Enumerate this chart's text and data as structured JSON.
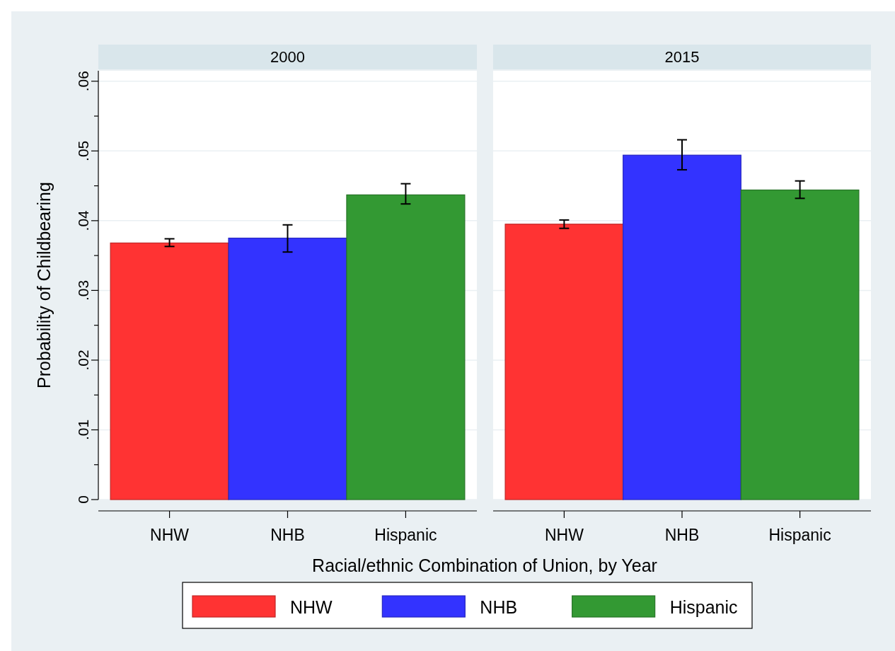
{
  "chart_data": [
    {
      "type": "bar",
      "title": "2000",
      "ylabel": "Probability of Childbearing",
      "xlabel": "Racial/ethnic Combination of Union, by Year",
      "legend": "bottom",
      "grid": "y",
      "categories": [
        "NHW",
        "NHB",
        "Hispanic"
      ],
      "series": [
        {
          "name": "NHW",
          "color": "#ff3333",
          "values": [
            0.0368,
            null,
            null
          ],
          "errors": [
            [
              0.0363,
              0.0374
            ],
            null,
            null
          ]
        },
        {
          "name": "NHB",
          "color": "#3333ff",
          "values": [
            null,
            0.0375,
            null
          ],
          "errors": [
            null,
            [
              0.0355,
              0.0394
            ],
            null
          ]
        },
        {
          "name": "Hispanic",
          "color": "#339933",
          "values": [
            null,
            null,
            0.0437
          ],
          "errors": [
            null,
            null,
            [
              0.0424,
              0.0453
            ]
          ]
        }
      ],
      "ylim": [
        0,
        0.0615
      ],
      "yticks": [
        {
          "value": 0,
          "label": "0"
        },
        {
          "value": 0.005,
          "label": null
        },
        {
          "value": 0.01,
          "label": ".01"
        },
        {
          "value": 0.015,
          "label": null
        },
        {
          "value": 0.02,
          "label": ".02"
        },
        {
          "value": 0.025,
          "label": null
        },
        {
          "value": 0.03,
          "label": ".03"
        },
        {
          "value": 0.035,
          "label": null
        },
        {
          "value": 0.04,
          "label": ".04"
        },
        {
          "value": 0.045,
          "label": null
        },
        {
          "value": 0.05,
          "label": ".05"
        },
        {
          "value": 0.055,
          "label": null
        },
        {
          "value": 0.06,
          "label": ".06"
        }
      ]
    },
    {
      "type": "bar",
      "title": "2015",
      "grid": "y",
      "tick_labels": "x",
      "categories": [
        "NHW",
        "NHB",
        "Hispanic"
      ],
      "series": [
        {
          "color": "#ff3333",
          "values": [
            0.0395,
            null,
            null
          ],
          "errors": [
            [
              0.0389,
              0.0401
            ],
            null,
            null
          ]
        },
        {
          "color": "#3333ff",
          "values": [
            null,
            0.0494,
            null
          ],
          "errors": [
            null,
            [
              0.0473,
              0.0516
            ],
            null
          ]
        },
        {
          "color": "#339933",
          "values": [
            null,
            null,
            0.0444
          ],
          "errors": [
            null,
            null,
            [
              0.0432,
              0.0457
            ]
          ]
        }
      ],
      "ylim": [
        0,
        0.0615
      ],
      "yticks": [
        0,
        0.01,
        0.02,
        0.03,
        0.04,
        0.05,
        0.06
      ]
    }
  ]
}
